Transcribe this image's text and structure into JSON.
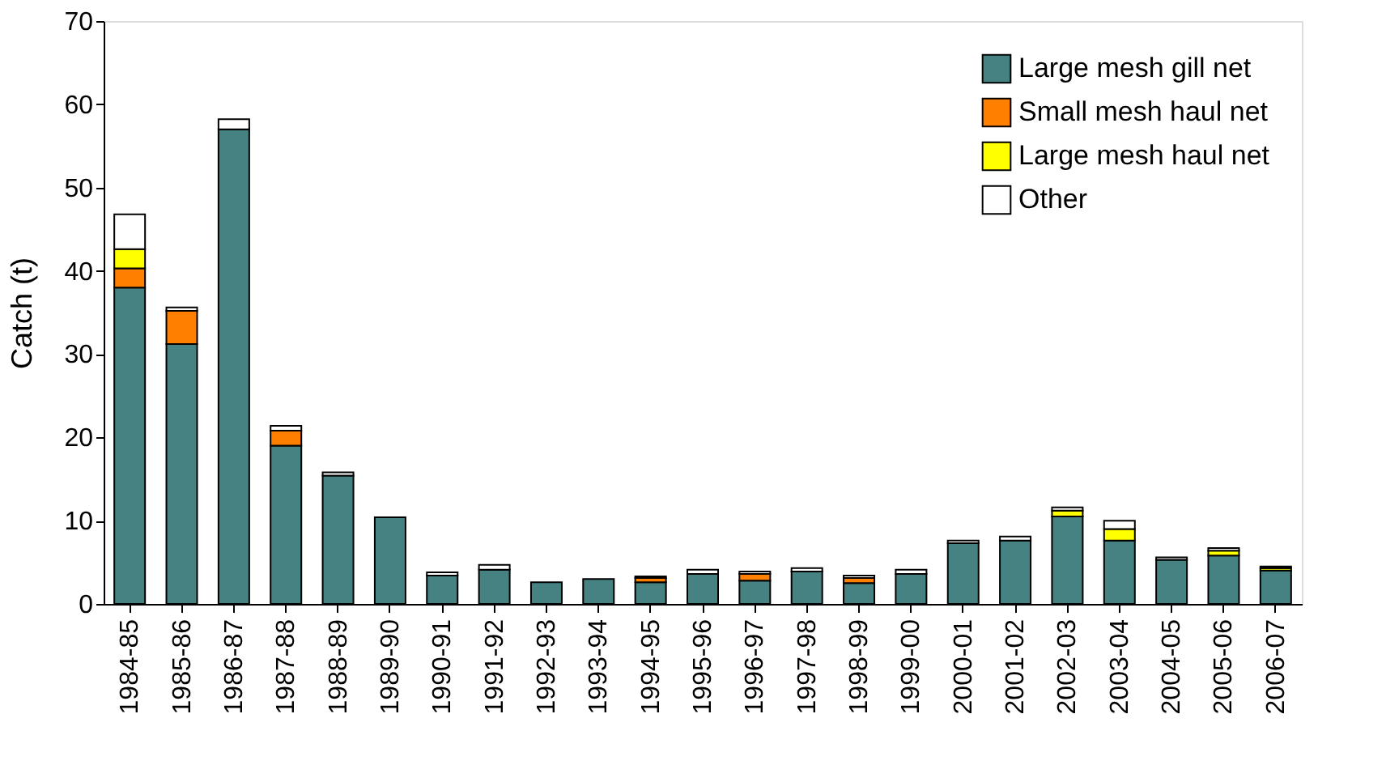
{
  "chart_data": {
    "type": "bar",
    "stacked": true,
    "ylabel": "Catch (t)",
    "categories": [
      "1984-85",
      "1985-86",
      "1986-87",
      "1987-88",
      "1988-89",
      "1989-90",
      "1990-91",
      "1991-92",
      "1992-93",
      "1993-94",
      "1994-95",
      "1995-96",
      "1996-97",
      "1997-98",
      "1998-99",
      "1999-00",
      "2000-01",
      "2001-02",
      "2002-03",
      "2003-04",
      "2004-05",
      "2005-06",
      "2006-07"
    ],
    "series": [
      {
        "name": "Large mesh gill net",
        "color": "#468282",
        "values": [
          38,
          31.2,
          57,
          19,
          15.4,
          10.4,
          3.4,
          4.1,
          2.6,
          3.0,
          2.6,
          3.6,
          2.8,
          3.9,
          2.5,
          3.6,
          7.3,
          7.6,
          10.5,
          7.6,
          5.3,
          5.8,
          4.0
        ]
      },
      {
        "name": "Small mesh haul net",
        "color": "#ff8000",
        "values": [
          2.3,
          4,
          0,
          1.8,
          0,
          0,
          0,
          0,
          0,
          0,
          0.5,
          0,
          0.8,
          0,
          0.6,
          0,
          0,
          0,
          0,
          0,
          0,
          0,
          0
        ]
      },
      {
        "name": "Large mesh haul net",
        "color": "#ffff00",
        "values": [
          2.3,
          0,
          0,
          0,
          0,
          0,
          0,
          0,
          0,
          0,
          0,
          0,
          0,
          0,
          0,
          0,
          0,
          0,
          0.7,
          1.4,
          0,
          0.6,
          0.3
        ]
      },
      {
        "name": "Other",
        "color": "#ffffff",
        "values": [
          4.2,
          0.4,
          1.2,
          0.6,
          0.4,
          0,
          0.4,
          0.6,
          0,
          0,
          0.2,
          0.5,
          0.3,
          0.4,
          0.3,
          0.5,
          0.3,
          0.5,
          0.4,
          1.0,
          0.3,
          0.3,
          0.2
        ]
      }
    ],
    "ylim": [
      0,
      70
    ],
    "yticks": [
      0,
      10,
      20,
      30,
      40,
      50,
      60,
      70
    ],
    "grid": false,
    "legend": "top right"
  }
}
